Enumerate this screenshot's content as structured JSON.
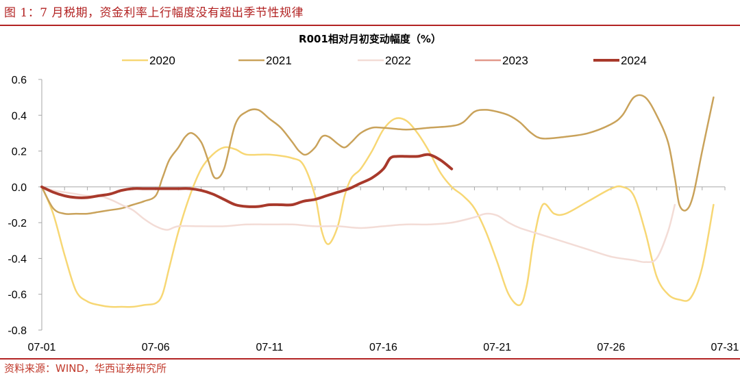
{
  "figure_title": "图 1：7 月税期，资金利率上行幅度没有超出季节性规律",
  "source_note": "资料来源：WIND，华西证券研究所",
  "chart_data": {
    "type": "line",
    "title": "R001相对月初变动幅度（%）",
    "xlabel": "",
    "ylabel": "",
    "ylim": [
      -0.8,
      0.6
    ],
    "yticks": [
      "0.6",
      "0.4",
      "0.2",
      "0.0",
      "-0.2",
      "-0.4",
      "-0.6",
      "-0.8"
    ],
    "ytick_values": [
      0.6,
      0.4,
      0.2,
      0.0,
      -0.2,
      -0.4,
      -0.6,
      -0.8
    ],
    "xlim": [
      1,
      31
    ],
    "xticks": [
      "07-01",
      "07-06",
      "07-11",
      "07-16",
      "07-21",
      "07-26",
      "07-31"
    ],
    "xtick_values": [
      1,
      6,
      11,
      16,
      21,
      26,
      31
    ],
    "grid": false,
    "legend_position": "top",
    "series": [
      {
        "name": "2020",
        "color": "#f7d774",
        "width": 2.5,
        "x": [
          1,
          1.5,
          2,
          2.5,
          3,
          3.5,
          4,
          4.5,
          5,
          5.5,
          6,
          6.3,
          6.6,
          7,
          7.5,
          8,
          8.5,
          9,
          9.5,
          10,
          11,
          12,
          12.5,
          13,
          13.3,
          13.6,
          14,
          14.3,
          14.6,
          15,
          15.5,
          16,
          16.5,
          17,
          17.5,
          18,
          18.5,
          19,
          19.5,
          20,
          20.5,
          21,
          21.5,
          22,
          22.3,
          22.6,
          23,
          23.5,
          24,
          25,
          26,
          26.5,
          27,
          27.5,
          28,
          28.5,
          29,
          29.5,
          30,
          30.5
        ],
        "y": [
          0.0,
          -0.15,
          -0.38,
          -0.58,
          -0.64,
          -0.66,
          -0.67,
          -0.67,
          -0.67,
          -0.66,
          -0.65,
          -0.6,
          -0.45,
          -0.25,
          -0.05,
          0.1,
          0.18,
          0.22,
          0.21,
          0.18,
          0.18,
          0.16,
          0.12,
          -0.05,
          -0.25,
          -0.32,
          -0.22,
          -0.05,
          0.05,
          0.1,
          0.2,
          0.32,
          0.38,
          0.37,
          0.3,
          0.2,
          0.08,
          0.0,
          -0.05,
          -0.12,
          -0.25,
          -0.42,
          -0.6,
          -0.66,
          -0.55,
          -0.3,
          -0.1,
          -0.15,
          -0.15,
          -0.08,
          -0.01,
          0.0,
          -0.05,
          -0.25,
          -0.5,
          -0.6,
          -0.63,
          -0.62,
          -0.45,
          -0.1
        ]
      },
      {
        "name": "2021",
        "color": "#c9a25a",
        "width": 2.5,
        "x": [
          1,
          1.5,
          2,
          2.5,
          3,
          3.5,
          4,
          4.5,
          5,
          5.5,
          6,
          6.3,
          6.6,
          7,
          7.3,
          7.6,
          8,
          8.3,
          8.6,
          9,
          9.5,
          10,
          10.5,
          11,
          11.5,
          12,
          12.3,
          12.6,
          13,
          13.3,
          13.6,
          14,
          14.3,
          14.6,
          15,
          15.5,
          16,
          17,
          18,
          19,
          19.5,
          20,
          20.5,
          21,
          21.5,
          22,
          22.5,
          23,
          24,
          25,
          26,
          26.5,
          27,
          27.5,
          28,
          28.5,
          28.8,
          29,
          29.3,
          29.6,
          30,
          30.5
        ],
        "y": [
          0.0,
          -0.12,
          -0.15,
          -0.15,
          -0.15,
          -0.14,
          -0.13,
          -0.12,
          -0.1,
          -0.08,
          -0.05,
          0.05,
          0.15,
          0.22,
          0.28,
          0.3,
          0.25,
          0.15,
          0.05,
          0.1,
          0.35,
          0.42,
          0.43,
          0.38,
          0.33,
          0.25,
          0.2,
          0.18,
          0.22,
          0.28,
          0.28,
          0.24,
          0.22,
          0.25,
          0.3,
          0.33,
          0.33,
          0.32,
          0.33,
          0.34,
          0.36,
          0.42,
          0.43,
          0.42,
          0.4,
          0.36,
          0.3,
          0.27,
          0.28,
          0.3,
          0.35,
          0.4,
          0.5,
          0.5,
          0.4,
          0.25,
          0.05,
          -0.1,
          -0.13,
          -0.05,
          0.2,
          0.5
        ]
      },
      {
        "name": "2022",
        "color": "#f3dcd6",
        "width": 2.5,
        "x": [
          1,
          1.5,
          2,
          2.5,
          3,
          3.5,
          4,
          4.5,
          5,
          5.5,
          6,
          6.5,
          7,
          8,
          9,
          10,
          11,
          12,
          13,
          14,
          15,
          16,
          17,
          18,
          19,
          20,
          20.5,
          21,
          21.5,
          22,
          23,
          24,
          25,
          26,
          27,
          27.5,
          28,
          28.5,
          28.8
        ],
        "y": [
          0.0,
          -0.02,
          -0.03,
          -0.04,
          -0.05,
          -0.05,
          -0.07,
          -0.1,
          -0.13,
          -0.18,
          -0.22,
          -0.24,
          -0.22,
          -0.22,
          -0.22,
          -0.21,
          -0.21,
          -0.21,
          -0.22,
          -0.22,
          -0.23,
          -0.22,
          -0.21,
          -0.21,
          -0.2,
          -0.17,
          -0.15,
          -0.16,
          -0.2,
          -0.23,
          -0.27,
          -0.31,
          -0.35,
          -0.39,
          -0.41,
          -0.42,
          -0.4,
          -0.25,
          -0.1
        ]
      },
      {
        "name": "2023",
        "color": "#e2988a",
        "width": 2.5,
        "x": [],
        "y": []
      },
      {
        "name": "2024",
        "color": "#a8392b",
        "width": 4,
        "x": [
          1,
          1.5,
          2,
          2.5,
          3,
          3.5,
          4,
          4.5,
          5,
          5.5,
          6,
          6.5,
          7,
          7.5,
          8,
          8.5,
          9,
          9.5,
          10,
          10.5,
          11,
          11.5,
          12,
          12.5,
          13,
          13.5,
          14,
          14.5,
          15,
          15.5,
          16,
          16.3,
          16.6,
          17,
          17.5,
          18,
          18.5,
          19
        ],
        "y": [
          0.0,
          -0.03,
          -0.05,
          -0.06,
          -0.06,
          -0.05,
          -0.04,
          -0.02,
          -0.01,
          -0.01,
          -0.01,
          -0.01,
          -0.01,
          -0.01,
          -0.02,
          -0.04,
          -0.07,
          -0.1,
          -0.11,
          -0.11,
          -0.1,
          -0.1,
          -0.1,
          -0.08,
          -0.07,
          -0.05,
          -0.03,
          -0.01,
          0.02,
          0.05,
          0.1,
          0.16,
          0.17,
          0.17,
          0.17,
          0.18,
          0.15,
          0.1
        ]
      }
    ]
  }
}
